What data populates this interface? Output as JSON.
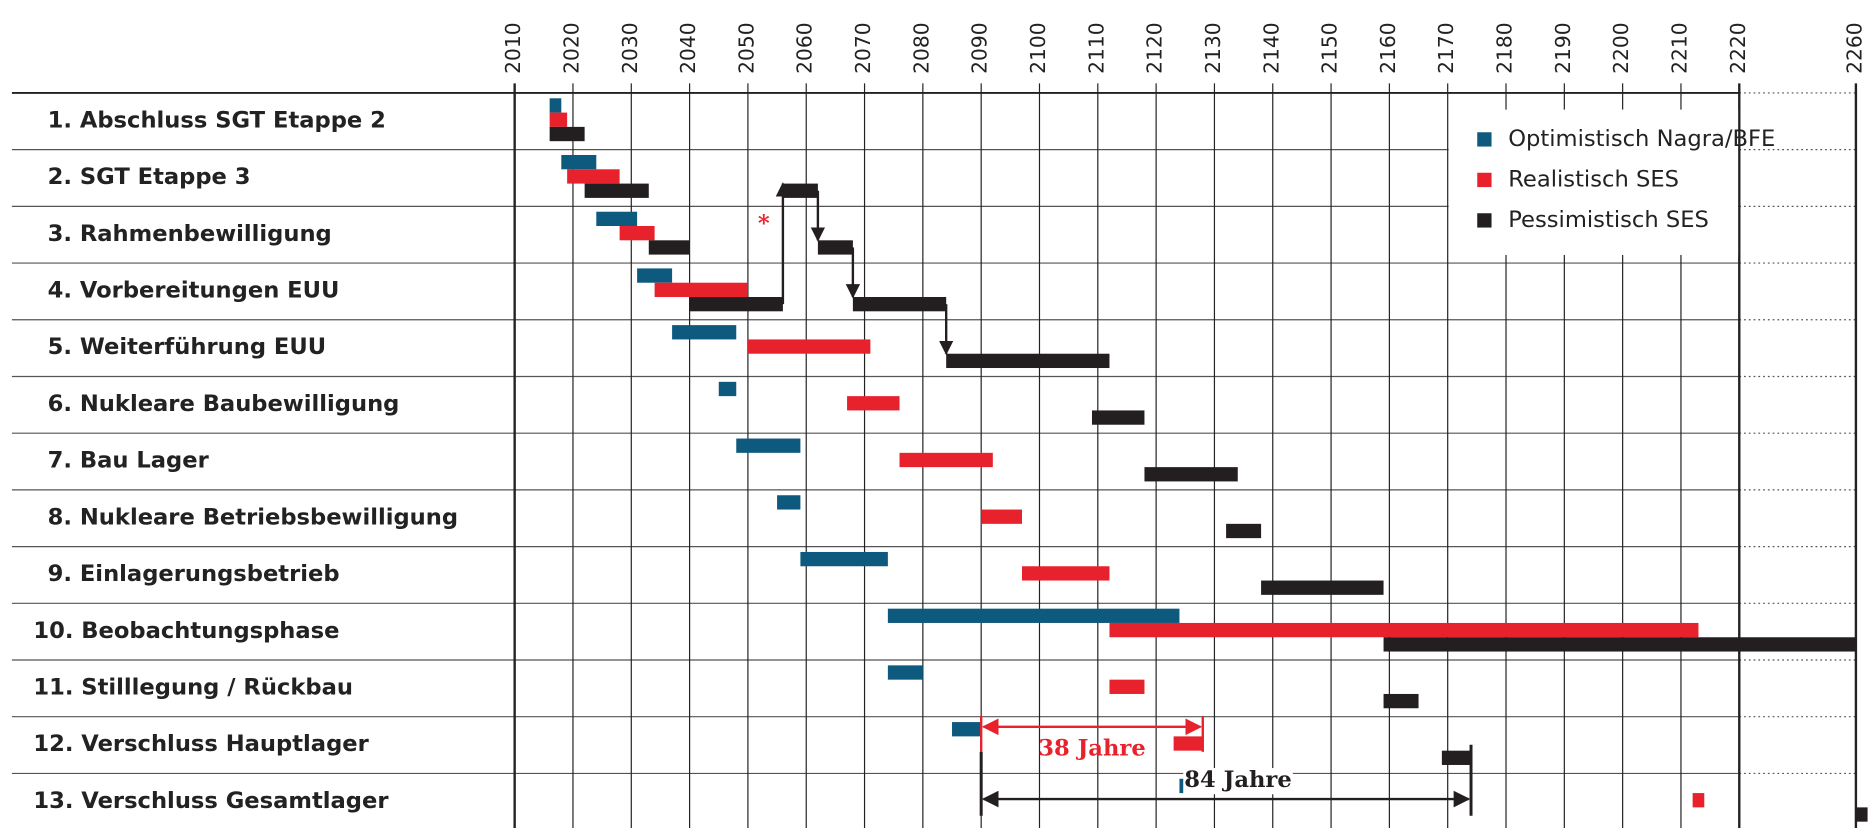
{
  "chart_data": {
    "type": "gantt",
    "categories": [
      "1.  Abschluss SGT Etappe 2",
      "2.  SGT Etappe 3",
      "3.  Rahmenbewilligung",
      "4.  Vorbereitungen EUU",
      "5.  Weiterführung EUU",
      "6.  Nukleare Baubewilligung",
      "7.  Bau Lager",
      "8.  Nukleare Betriebsbewilligung",
      "9.  Einlagerungsbetrieb",
      "10.  Beobachtungsphase",
      "11.  Stilllegung / Rückbau",
      "12.  Verschluss Hauptlager",
      "13.  Verschluss Gesamtlager"
    ],
    "series": [
      {
        "name": "Optimistisch Nagra/BFE",
        "color": "#0e5a7e",
        "values": [
          [
            [
              2016,
              2018
            ]
          ],
          [
            [
              2018,
              2024
            ]
          ],
          [
            [
              2024,
              2031
            ]
          ],
          [
            [
              2031,
              2037
            ]
          ],
          [
            [
              2037,
              2048
            ]
          ],
          [
            [
              2045,
              2048
            ]
          ],
          [
            [
              2048,
              2059
            ]
          ],
          [
            [
              2055,
              2059
            ]
          ],
          [
            [
              2059,
              2074
            ]
          ],
          [
            [
              2074,
              2124
            ]
          ],
          [
            [
              2074,
              2080
            ]
          ],
          [
            [
              2085,
              2090
            ]
          ],
          [
            [
              2124,
              2126
            ]
          ]
        ]
      },
      {
        "name": "Realistisch SES",
        "color": "#e8222d",
        "values": [
          [
            [
              2016,
              2019
            ]
          ],
          [
            [
              2019,
              2028
            ]
          ],
          [
            [
              2028,
              2034
            ]
          ],
          [
            [
              2034,
              2050
            ]
          ],
          [
            [
              2050,
              2071
            ]
          ],
          [
            [
              2067,
              2076
            ]
          ],
          [
            [
              2076,
              2092
            ]
          ],
          [
            [
              2090,
              2097
            ]
          ],
          [
            [
              2097,
              2112
            ]
          ],
          [
            [
              2112,
              2213
            ]
          ],
          [
            [
              2112,
              2118
            ]
          ],
          [
            [
              2123,
              2128
            ]
          ],
          [
            [
              2212,
              2214
            ]
          ]
        ]
      },
      {
        "name": "Pessimistisch SES",
        "color": "#231f20",
        "values": [
          [
            [
              2016,
              2022
            ]
          ],
          [
            [
              2022,
              2033
            ],
            [
              2056,
              2062
            ]
          ],
          [
            [
              2033,
              2040
            ],
            [
              2062,
              2068
            ]
          ],
          [
            [
              2040,
              2056
            ],
            [
              2068,
              2084
            ]
          ],
          [
            [
              2084,
              2112
            ]
          ],
          [
            [
              2109,
              2118
            ]
          ],
          [
            [
              2118,
              2134
            ]
          ],
          [
            [
              2132,
              2138
            ]
          ],
          [
            [
              2138,
              2159
            ]
          ],
          [
            [
              2159,
              2260
            ]
          ],
          [
            [
              2159,
              2165
            ]
          ],
          [
            [
              2169,
              2174
            ]
          ],
          [
            [
              2260,
              2264
            ]
          ]
        ]
      }
    ],
    "xlim": [
      2010,
      2260
    ],
    "xticks": [
      2010,
      2020,
      2030,
      2040,
      2050,
      2060,
      2070,
      2080,
      2090,
      2100,
      2110,
      2120,
      2130,
      2140,
      2150,
      2160,
      2170,
      2180,
      2190,
      2200,
      2210,
      2220,
      2260
    ],
    "annotations": [
      {
        "text": "38 Jahre",
        "from": 2090,
        "to": 2128,
        "color": "#e8222d"
      },
      {
        "text": "84 Jahre",
        "from": 2090,
        "to": 2174,
        "color": "#231f20"
      },
      {
        "text": "*",
        "color": "#e8222d"
      }
    ],
    "legend": "upper right",
    "grid": true
  }
}
